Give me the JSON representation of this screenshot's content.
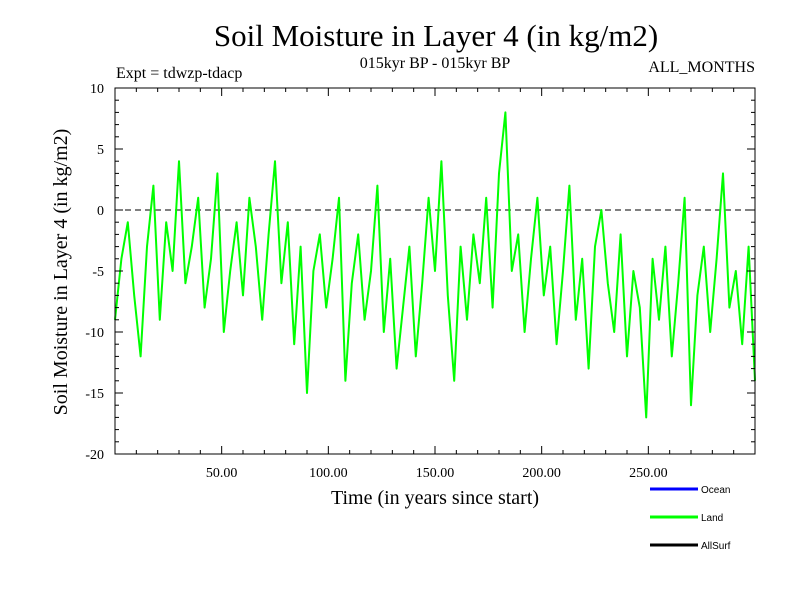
{
  "header": {
    "title": "Soil Moisture in Layer 4 (in kg/m2)",
    "expt": "Expt = tdwzp-tdacp",
    "period": "015kyr BP - 015kyr BP",
    "months": "ALL_MONTHS"
  },
  "chart_data": {
    "type": "line",
    "xlabel": "Time (in years since start)",
    "ylabel": "Soil Moisture in Layer 4 (in kg/m2)",
    "xlim": [
      0,
      300
    ],
    "ylim": [
      -20,
      10
    ],
    "x_ticks": [
      50,
      100,
      150,
      200,
      250
    ],
    "x_tick_labels": [
      "50.00",
      "100.00",
      "150.00",
      "200.00",
      "250.00"
    ],
    "y_ticks": [
      -20,
      -15,
      -10,
      -5,
      0,
      5,
      10
    ],
    "y_tick_labels": [
      "-20",
      "-15",
      "-10",
      "-5",
      "0",
      "5",
      "10"
    ],
    "zero_line": true,
    "grid": false,
    "legend_position": "bottom-right",
    "series": [
      {
        "name": "Ocean",
        "color": "#0000ff",
        "x": [],
        "y": []
      },
      {
        "name": "Land",
        "color": "#00ff00",
        "x": [
          0,
          3,
          6,
          9,
          12,
          15,
          18,
          21,
          24,
          27,
          30,
          33,
          36,
          39,
          42,
          45,
          48,
          51,
          54,
          57,
          60,
          63,
          66,
          69,
          72,
          75,
          78,
          81,
          84,
          87,
          90,
          93,
          96,
          99,
          102,
          105,
          108,
          111,
          114,
          117,
          120,
          123,
          126,
          129,
          132,
          135,
          138,
          141,
          144,
          147,
          150,
          153,
          156,
          159,
          162,
          165,
          168,
          171,
          174,
          177,
          180,
          183,
          186,
          189,
          192,
          195,
          198,
          201,
          204,
          207,
          210,
          213,
          216,
          219,
          222,
          225,
          228,
          231,
          234,
          237,
          240,
          243,
          246,
          249,
          252,
          255,
          258,
          261,
          264,
          267,
          270,
          273,
          276,
          279,
          282,
          285,
          288,
          291,
          294,
          297,
          300
        ],
        "y": [
          -9,
          -4,
          -1,
          -7,
          -12,
          -3,
          2,
          -9,
          -1,
          -5,
          4,
          -6,
          -3,
          1,
          -8,
          -4,
          3,
          -10,
          -5,
          -1,
          -7,
          1,
          -3,
          -9,
          -2,
          4,
          -6,
          -1,
          -11,
          -3,
          -15,
          -5,
          -2,
          -8,
          -4,
          1,
          -14,
          -6,
          -2,
          -9,
          -5,
          2,
          -10,
          -4,
          -13,
          -8,
          -3,
          -12,
          -6,
          1,
          -5,
          4,
          -7,
          -14,
          -3,
          -9,
          -2,
          -6,
          1,
          -8,
          3,
          8,
          -5,
          -2,
          -10,
          -4,
          1,
          -7,
          -3,
          -11,
          -5,
          2,
          -9,
          -4,
          -13,
          -3,
          0,
          -6,
          -10,
          -2,
          -12,
          -5,
          -8,
          -17,
          -4,
          -9,
          -3,
          -12,
          -6,
          1,
          -16,
          -7,
          -3,
          -10,
          -4,
          3,
          -8,
          -5,
          -11,
          -3,
          -14
        ]
      },
      {
        "name": "AllSurf",
        "color": "#000000",
        "x": [],
        "y": []
      }
    ]
  }
}
